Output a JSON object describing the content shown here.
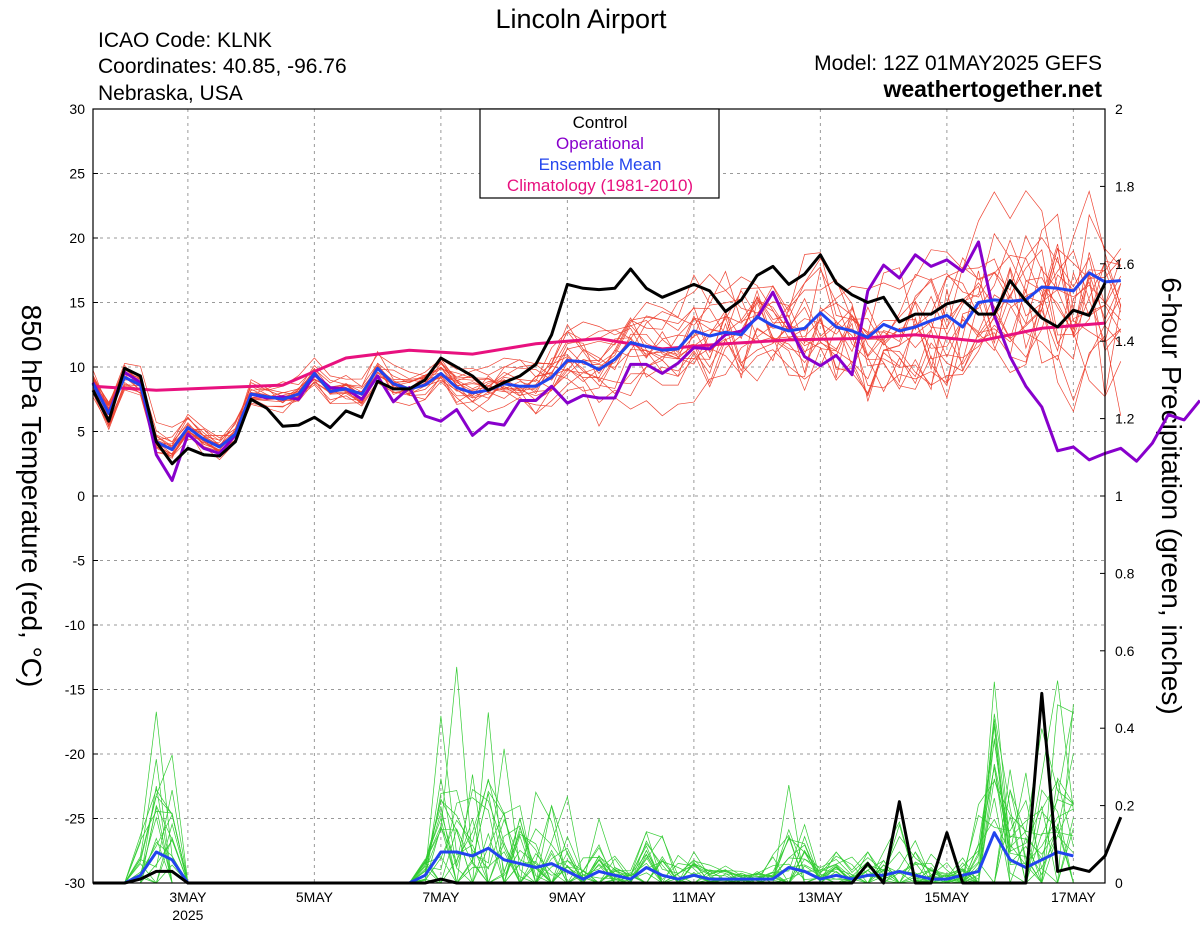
{
  "header": {
    "title": "Lincoln Airport",
    "icao": "ICAO Code: KLNK",
    "coords": "Coordinates: 40.85, -96.76",
    "region": "Nebraska, USA",
    "model": "Model: 12Z 01MAY2025 GEFS",
    "site": "weathertogether.net",
    "site_color": "#1a9ee8"
  },
  "legend": [
    {
      "label": "Control",
      "color": "#000000"
    },
    {
      "label": "Operational",
      "color": "#8800cc"
    },
    {
      "label": "Ensemble Mean",
      "color": "#2244ee"
    },
    {
      "label": "Climatology (1981-2010)",
      "color": "#e8117f"
    }
  ],
  "chart_data": {
    "type": "line",
    "ylabel_left": "850 hPa Temperature (red, °C)",
    "ylabel_right": "6-hour Precipitation (green, inches)",
    "left_ticks": [
      "30",
      "25",
      "20",
      "15",
      "10",
      "5",
      "0",
      "-5",
      "-10",
      "-15",
      "-20",
      "-25",
      "-30"
    ],
    "right_ticks": [
      "2",
      "1.8",
      "1.6",
      "1.4",
      "1.2",
      "1",
      "0.8",
      "0.6",
      "0.4",
      "0.2",
      "0"
    ],
    "xlim_days": [
      1.5,
      17.5
    ],
    "ylim_temp": [
      -30,
      30
    ],
    "ylim_precip": [
      0,
      2
    ],
    "x_ticks": [
      {
        "day": 3,
        "label": "3MAY",
        "sub": "2025"
      },
      {
        "day": 5,
        "label": "5MAY",
        "sub": ""
      },
      {
        "day": 7,
        "label": "7MAY",
        "sub": ""
      },
      {
        "day": 9,
        "label": "9MAY",
        "sub": ""
      },
      {
        "day": 11,
        "label": "11MAY",
        "sub": ""
      },
      {
        "day": 13,
        "label": "13MAY",
        "sub": ""
      },
      {
        "day": 15,
        "label": "15MAY",
        "sub": ""
      },
      {
        "day": 17,
        "label": "17MAY",
        "sub": ""
      }
    ],
    "time_axis": "6-hourly from 1 May 12Z (x = day of May)",
    "colors": {
      "member_temp": "#ee4433",
      "member_precip": "#33cc33",
      "control": "#000000",
      "operational": "#8800cc",
      "mean": "#2244ee",
      "climatology": "#e8117f"
    },
    "control_temp": [
      8.2,
      5.8,
      9.9,
      9.3,
      4.2,
      2.5,
      3.7,
      3.2,
      3.1,
      4.2,
      7.5,
      6.8,
      5.4,
      5.5,
      6.1,
      5.3,
      6.6,
      6.1,
      8.9,
      8.3,
      8.3,
      9.0,
      10.7,
      10.0,
      9.3,
      8.2,
      8.8,
      9.3,
      10.2,
      12.5,
      16.4,
      16.1,
      16.0,
      16.1,
      17.6,
      16.1,
      15.4,
      15.9,
      16.4,
      15.9,
      14.3,
      15.2,
      17.1,
      17.8,
      16.4,
      17.2,
      18.7,
      16.5,
      15.6,
      15.0,
      15.4,
      13.5,
      14.1,
      14.1,
      14.9,
      15.2,
      14.1,
      14.1,
      16.7,
      15.1,
      13.8,
      13.1,
      14.4,
      14.0,
      16.5
    ],
    "operational_temp": [
      8.8,
      6.4,
      9.6,
      8.8,
      3.2,
      1.2,
      4.8,
      3.7,
      3.3,
      4.7,
      7.9,
      7.6,
      7.7,
      7.5,
      9.4,
      8.4,
      8.3,
      7.5,
      9.3,
      7.3,
      8.4,
      6.2,
      5.8,
      6.7,
      4.7,
      5.7,
      5.5,
      7.4,
      7.4,
      8.5,
      7.2,
      7.8,
      7.6,
      7.6,
      10.2,
      10.2,
      9.5,
      10.3,
      11.5,
      11.4,
      12.5,
      12.8,
      13.8,
      15.8,
      13.2,
      10.8,
      10.1,
      10.9,
      9.4,
      15.9,
      17.9,
      16.9,
      18.7,
      17.8,
      18.3,
      17.4,
      19.7,
      14.0,
      10.8,
      8.5,
      6.9,
      3.5,
      3.8,
      2.8,
      3.3,
      3.7,
      2.7,
      4.1,
      6.3,
      5.9,
      7.4
    ],
    "mean_temp": [
      8.7,
      6.4,
      9.2,
      8.6,
      4.2,
      3.6,
      5.3,
      4.4,
      3.8,
      4.8,
      7.9,
      7.7,
      7.5,
      7.9,
      9.5,
      8.1,
      8.3,
      7.9,
      9.9,
      8.7,
      8.3,
      8.6,
      9.5,
      8.4,
      8.0,
      8.2,
      8.7,
      8.5,
      8.5,
      9.2,
      10.5,
      10.4,
      9.8,
      10.6,
      11.9,
      11.6,
      11.3,
      11.4,
      12.8,
      12.4,
      12.7,
      12.5,
      13.9,
      13.2,
      12.8,
      13.0,
      14.2,
      13.1,
      12.8,
      12.3,
      13.3,
      12.8,
      13.1,
      13.6,
      14.0,
      13.1,
      15.0,
      15.2,
      15.1,
      15.2,
      16.2,
      16.1,
      15.9,
      17.3,
      16.6,
      16.7
    ],
    "climatology_temp": [
      [
        1.5,
        8.5
      ],
      [
        2.5,
        8.2
      ],
      [
        3.5,
        8.4
      ],
      [
        4.5,
        8.6
      ],
      [
        5.5,
        10.7
      ],
      [
        6.5,
        11.3
      ],
      [
        7.5,
        11.0
      ],
      [
        8.5,
        11.8
      ],
      [
        9.5,
        12.2
      ],
      [
        10.5,
        11.4
      ],
      [
        11.5,
        11.8
      ],
      [
        12.5,
        12.1
      ],
      [
        13.5,
        12.2
      ],
      [
        14.5,
        12.5
      ],
      [
        15.5,
        12.0
      ],
      [
        16.5,
        13.0
      ],
      [
        17.5,
        13.4
      ]
    ],
    "control_precip": [
      0,
      0,
      0,
      0.01,
      0.03,
      0.03,
      0,
      0,
      0,
      0,
      0,
      0,
      0,
      0,
      0,
      0,
      0,
      0,
      0,
      0,
      0,
      0,
      0.01,
      0,
      0,
      0,
      0,
      0,
      0,
      0,
      0,
      0,
      0,
      0,
      0,
      0,
      0,
      0,
      0,
      0,
      0,
      0,
      0,
      0,
      0,
      0,
      0,
      0,
      0,
      0.05,
      0,
      0.21,
      0,
      0,
      0.13,
      0,
      0,
      0,
      0,
      0,
      0.49,
      0.03,
      0.04,
      0.03,
      0.07,
      0.17
    ],
    "mean_precip": [
      0,
      0,
      0,
      0.02,
      0.08,
      0.06,
      0,
      0,
      0,
      0,
      0,
      0,
      0,
      0,
      0,
      0,
      0,
      0,
      0,
      0,
      0,
      0.02,
      0.08,
      0.08,
      0.07,
      0.09,
      0.06,
      0.05,
      0.04,
      0.05,
      0.03,
      0.01,
      0.03,
      0.02,
      0.01,
      0.04,
      0.02,
      0.01,
      0.02,
      0.01,
      0.01,
      0.01,
      0.01,
      0.01,
      0.04,
      0.03,
      0.01,
      0.02,
      0.01,
      0.02,
      0.02,
      0.03,
      0.02,
      0.01,
      0.01,
      0.02,
      0.03,
      0.13,
      0.06,
      0.04,
      0.06,
      0.08,
      0.07
    ]
  }
}
